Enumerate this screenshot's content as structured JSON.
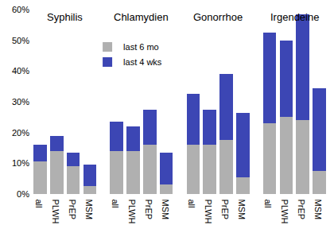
{
  "chart_data": {
    "type": "bar",
    "stacked": true,
    "categories": [
      "all",
      "PLWH",
      "PrEP",
      "MSM",
      "all",
      "PLWH",
      "PrEP",
      "MSM",
      "all",
      "PLWH",
      "PrEP",
      "MSM",
      "all",
      "PLWH",
      "PrEP",
      "MSM"
    ],
    "annotations": [
      "Syphilis",
      "Chlamydien",
      "Gonorrhoe",
      "Irgendeine"
    ],
    "series": [
      {
        "name": "last 6 mo",
        "color": "#b0b0b0",
        "values": [
          10.5,
          14,
          9,
          2.5,
          14,
          14,
          16,
          3,
          16,
          16,
          17.5,
          5.5,
          23,
          25,
          24,
          7.5
        ]
      },
      {
        "name": "last 4 wks",
        "color": "#3c46b4",
        "values": [
          5.5,
          5,
          4.5,
          7,
          9.5,
          8,
          11.5,
          10.5,
          16.5,
          11.5,
          21.5,
          21,
          29.5,
          25,
          34.5,
          27
        ]
      }
    ],
    "ylim": [
      0,
      60
    ],
    "yticks": [
      {
        "value": 0,
        "label": "0%"
      },
      {
        "value": 10,
        "label": "10%"
      },
      {
        "value": 20,
        "label": "20%"
      },
      {
        "value": 30,
        "label": "30%"
      },
      {
        "value": 40,
        "label": "40%"
      },
      {
        "value": 50,
        "label": "50%"
      },
      {
        "value": 60,
        "label": "60%"
      }
    ],
    "grid": false,
    "legend": "top"
  }
}
